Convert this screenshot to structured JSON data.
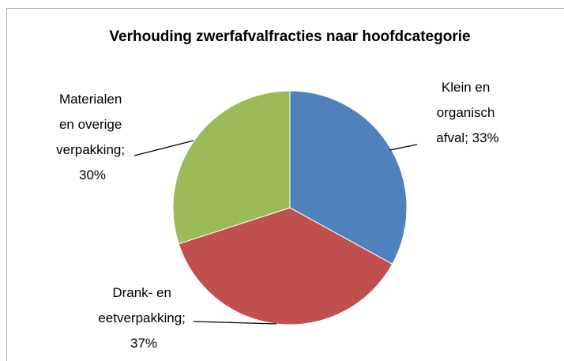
{
  "chart_data": {
    "type": "pie",
    "title": "Verhouding zwerfafvalfracties naar hoofdcategorie",
    "values": [
      33,
      37,
      30
    ],
    "value_labels": [
      "Klein en organisch afval; 33%",
      "Drank- en eetverpakking; 37%",
      "Materialen en overige verpakking; 30%"
    ],
    "colors": [
      "#4f81bd",
      "#c0504d",
      "#9bbb59"
    ]
  }
}
